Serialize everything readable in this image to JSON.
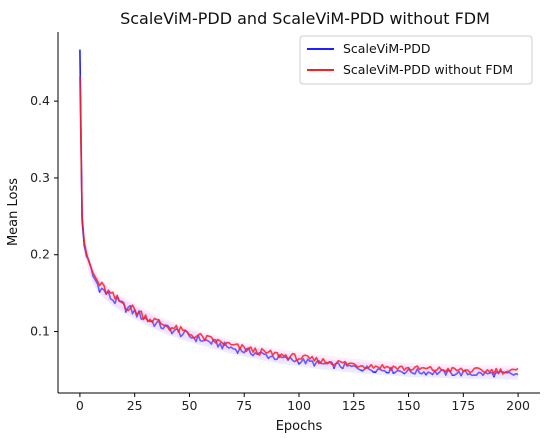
{
  "chart_data": {
    "type": "line",
    "title": "ScaleViM-PDD and ScaleViM-PDD without FDM",
    "xlabel": "Epochs",
    "ylabel": "Mean Loss",
    "xlim": [
      -10,
      210
    ],
    "ylim": [
      0.02,
      0.49
    ],
    "xticks": [
      0,
      25,
      50,
      75,
      100,
      125,
      150,
      175,
      200
    ],
    "yticks": [
      0.1,
      0.2,
      0.3,
      0.4
    ],
    "ytick_labels": [
      "0.1",
      "0.2",
      "0.3",
      "0.4"
    ],
    "legend_position": "top-right",
    "series": [
      {
        "name": "ScaleViM-PDD",
        "color": "#1f1fff",
        "x": [
          0,
          1,
          2,
          3,
          4,
          5,
          6,
          8,
          10,
          12,
          15,
          20,
          25,
          30,
          35,
          40,
          45,
          50,
          55,
          60,
          65,
          70,
          75,
          80,
          85,
          90,
          95,
          100,
          110,
          120,
          130,
          140,
          150,
          160,
          170,
          180,
          190,
          200
        ],
        "y": [
          0.467,
          0.245,
          0.212,
          0.198,
          0.188,
          0.18,
          0.172,
          0.162,
          0.155,
          0.15,
          0.142,
          0.133,
          0.125,
          0.117,
          0.11,
          0.104,
          0.099,
          0.094,
          0.09,
          0.086,
          0.082,
          0.078,
          0.075,
          0.072,
          0.069,
          0.066,
          0.064,
          0.062,
          0.058,
          0.055,
          0.052,
          0.05,
          0.048,
          0.047,
          0.046,
          0.045,
          0.045,
          0.044
        ]
      },
      {
        "name": "ScaleViM-PDD without FDM",
        "color": "#ff1f1f",
        "x": [
          0,
          1,
          2,
          3,
          4,
          5,
          6,
          8,
          10,
          12,
          15,
          20,
          25,
          30,
          35,
          40,
          45,
          50,
          55,
          60,
          65,
          70,
          75,
          80,
          85,
          90,
          95,
          100,
          110,
          120,
          130,
          140,
          150,
          160,
          170,
          180,
          190,
          200
        ],
        "y": [
          0.432,
          0.25,
          0.216,
          0.202,
          0.191,
          0.183,
          0.175,
          0.165,
          0.158,
          0.153,
          0.145,
          0.136,
          0.128,
          0.12,
          0.113,
          0.107,
          0.102,
          0.097,
          0.093,
          0.089,
          0.085,
          0.081,
          0.078,
          0.075,
          0.072,
          0.07,
          0.068,
          0.066,
          0.062,
          0.059,
          0.056,
          0.054,
          0.052,
          0.051,
          0.05,
          0.049,
          0.049,
          0.048
        ]
      }
    ]
  }
}
